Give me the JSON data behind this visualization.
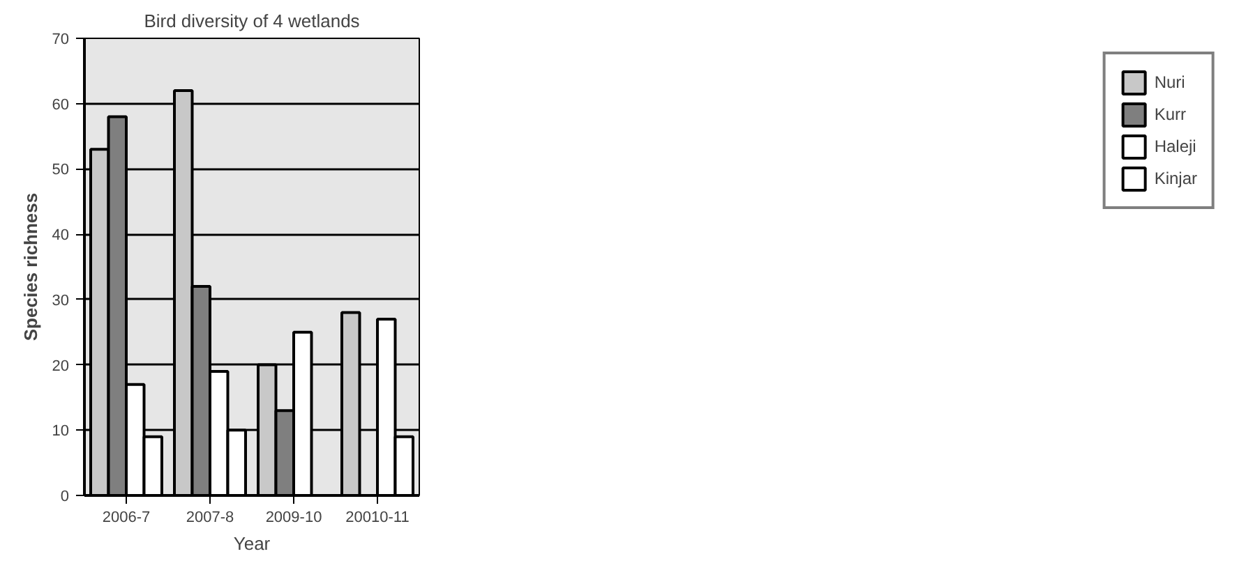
{
  "chart_data": {
    "type": "bar",
    "title": "Bird diversity of 4 wetlands",
    "xlabel": "Year",
    "ylabel": "Species richness",
    "categories": [
      "2006-7",
      "2007-8",
      "2009-10",
      "20010-11"
    ],
    "series": [
      {
        "name": "Nuri",
        "color": "#c8c8c8",
        "values": [
          53,
          62,
          20,
          28
        ]
      },
      {
        "name": "Kurr",
        "color": "#7f7f7f",
        "values": [
          58,
          32,
          13,
          null
        ]
      },
      {
        "name": "Haleji",
        "color": "#ffffff",
        "values": [
          17,
          19,
          25,
          27
        ]
      },
      {
        "name": "Kinjar",
        "color": "#ffffff",
        "values": [
          9,
          10,
          null,
          9
        ]
      }
    ],
    "ylim": [
      0,
      70
    ],
    "yticks": [
      0,
      10,
      20,
      30,
      40,
      50,
      60,
      70
    ],
    "grid": "y",
    "legend": "right"
  }
}
